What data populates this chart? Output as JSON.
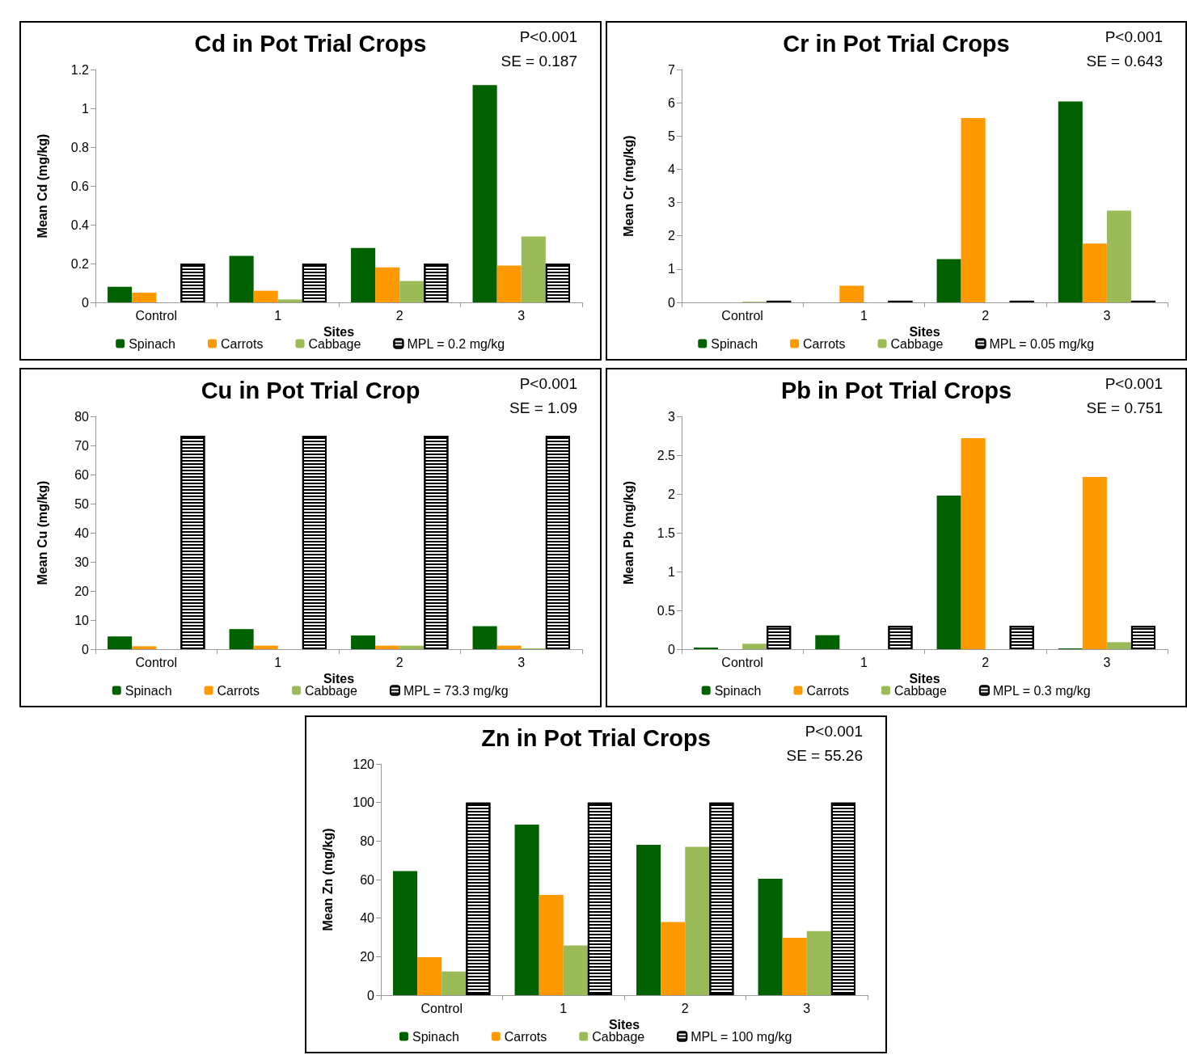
{
  "chart_data": [
    {
      "type": "bar",
      "title": "Cd in Pot Trial Crops",
      "annotations": [
        "P<0.001",
        "SE = 0.187"
      ],
      "xlabel": "Sites",
      "ylabel": "Mean Cd (mg/kg)",
      "categories": [
        "Control",
        "1",
        "2",
        "3"
      ],
      "ylim": [
        0,
        1.2
      ],
      "yticks": [
        0,
        0.2,
        0.4,
        0.6,
        0.8,
        1,
        1.2
      ],
      "legend": "bottom",
      "series": [
        {
          "name": "Spinach",
          "color": "#006100",
          "values": [
            0.08,
            0.24,
            0.28,
            1.12
          ]
        },
        {
          "name": "Carrots",
          "color": "#ff9900",
          "values": [
            0.05,
            0.06,
            0.18,
            0.19
          ]
        },
        {
          "name": "Cabbage",
          "color": "#9bbb59",
          "values": [
            0,
            0.015,
            0.11,
            0.34
          ]
        },
        {
          "name": "MPL = 0.2 mg/kg",
          "color": "#000000",
          "values": [
            0.2,
            0.2,
            0.2,
            0.2
          ]
        }
      ]
    },
    {
      "type": "bar",
      "title": "Cr in Pot Trial Crops",
      "annotations": [
        "P<0.001",
        "SE = 0.643"
      ],
      "xlabel": "Sites",
      "ylabel": "Mean Cr (mg/kg)",
      "categories": [
        "Control",
        "1",
        "2",
        "3"
      ],
      "ylim": [
        0,
        7
      ],
      "yticks": [
        0,
        1,
        2,
        3,
        4,
        5,
        6,
        7
      ],
      "legend": "bottom",
      "series": [
        {
          "name": "Spinach",
          "color": "#006100",
          "values": [
            0,
            0,
            1.3,
            6.04
          ]
        },
        {
          "name": "Carrots",
          "color": "#ff9900",
          "values": [
            0,
            0.5,
            5.54,
            1.77
          ]
        },
        {
          "name": "Cabbage",
          "color": "#9bbb59",
          "values": [
            0.02,
            0,
            0,
            2.76
          ]
        },
        {
          "name": "MPL = 0.05 mg/kg",
          "color": "#000000",
          "values": [
            0.05,
            0.05,
            0.05,
            0.05
          ]
        }
      ]
    },
    {
      "type": "bar",
      "title": "Cu in Pot Trial Crop",
      "annotations": [
        "P<0.001",
        "SE = 1.09"
      ],
      "xlabel": "Sites",
      "ylabel": "Mean Cu (mg/kg)",
      "categories": [
        "Control",
        "1",
        "2",
        "3"
      ],
      "ylim": [
        0,
        80
      ],
      "yticks": [
        0,
        10,
        20,
        30,
        40,
        50,
        60,
        70,
        80
      ],
      "legend": "bottom",
      "series": [
        {
          "name": "Spinach",
          "color": "#006100",
          "values": [
            4.4,
            6.9,
            4.7,
            7.9
          ]
        },
        {
          "name": "Carrots",
          "color": "#ff9900",
          "values": [
            1,
            1.2,
            1.2,
            1.2
          ]
        },
        {
          "name": "Cabbage",
          "color": "#9bbb59",
          "values": [
            0,
            0,
            1.2,
            0.3
          ]
        },
        {
          "name": "MPL = 73.3 mg/kg",
          "color": "#000000",
          "values": [
            73.3,
            73.3,
            73.3,
            73.3
          ]
        }
      ]
    },
    {
      "type": "bar",
      "title": "Pb in Pot Trial Crops",
      "annotations": [
        "P<0.001",
        "SE = 0.751"
      ],
      "xlabel": "Sites",
      "ylabel": "Mean Pb (mg/kg)",
      "categories": [
        "Control",
        "1",
        "2",
        "3"
      ],
      "ylim": [
        0,
        3
      ],
      "yticks": [
        0,
        0.5,
        1,
        1.5,
        2,
        2.5,
        3
      ],
      "legend": "bottom",
      "series": [
        {
          "name": "Spinach",
          "color": "#006100",
          "values": [
            0.02,
            0.18,
            1.98,
            0.01
          ]
        },
        {
          "name": "Carrots",
          "color": "#ff9900",
          "values": [
            0,
            0,
            2.72,
            2.22
          ]
        },
        {
          "name": "Cabbage",
          "color": "#9bbb59",
          "values": [
            0.07,
            0,
            0,
            0.09
          ]
        },
        {
          "name": "MPL = 0.3 mg/kg",
          "color": "#000000",
          "values": [
            0.3,
            0.3,
            0.3,
            0.3
          ]
        }
      ]
    },
    {
      "type": "bar",
      "title": "Zn in Pot Trial Crops",
      "annotations": [
        "P<0.001",
        "SE = 55.26"
      ],
      "xlabel": "Sites",
      "ylabel": "Mean Zn (mg/kg)",
      "categories": [
        "Control",
        "1",
        "2",
        "3"
      ],
      "ylim": [
        0,
        120
      ],
      "yticks": [
        0,
        20,
        40,
        60,
        80,
        100,
        120
      ],
      "legend": "bottom",
      "series": [
        {
          "name": "Spinach",
          "color": "#006100",
          "values": [
            64.4,
            88.5,
            78,
            60.4
          ]
        },
        {
          "name": "Carrots",
          "color": "#ff9900",
          "values": [
            19.7,
            52,
            38,
            29.8
          ]
        },
        {
          "name": "Cabbage",
          "color": "#9bbb59",
          "values": [
            12.3,
            25.8,
            77,
            33.3
          ]
        },
        {
          "name": "MPL = 100 mg/kg",
          "color": "#000000",
          "values": [
            100,
            100,
            100,
            100
          ]
        }
      ]
    }
  ]
}
